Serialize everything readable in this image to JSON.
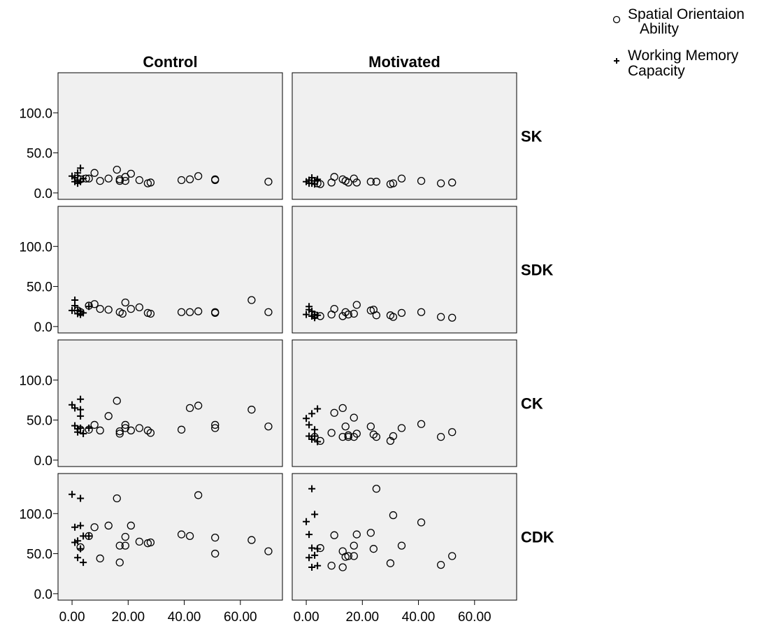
{
  "chart_data": {
    "type": "scatter",
    "columns": [
      "Control",
      "Motivated"
    ],
    "rows": [
      "SK",
      "SDK",
      "CK",
      "CDK"
    ],
    "x_ticks": [
      "0.00",
      "20.00",
      "40.00",
      "60.00"
    ],
    "x_tick_values": [
      0,
      20,
      40,
      60
    ],
    "xlim": [
      -5,
      75
    ],
    "y_ticks": [
      "0.0",
      "50.0",
      "100.0"
    ],
    "y_tick_values": [
      0,
      50,
      100
    ],
    "ylim": [
      -8,
      150
    ],
    "grid": false,
    "legend_position": "top-right",
    "series": [
      {
        "name": "Spatial Orientaion Ability",
        "marker": "circle",
        "color": "#000000"
      },
      {
        "name": "Working Memory Capacity",
        "marker": "plus",
        "color": "#000000"
      }
    ],
    "panels": [
      {
        "column": "Control",
        "row": "SK",
        "circles": [
          [
            2,
            18
          ],
          [
            3,
            17
          ],
          [
            5,
            18
          ],
          [
            6,
            18
          ],
          [
            8,
            25
          ],
          [
            10,
            15
          ],
          [
            13,
            18
          ],
          [
            16,
            29
          ],
          [
            17,
            15
          ],
          [
            17,
            17
          ],
          [
            19,
            15
          ],
          [
            19,
            20
          ],
          [
            21,
            24
          ],
          [
            24,
            16
          ],
          [
            27,
            12
          ],
          [
            28,
            13
          ],
          [
            39,
            16
          ],
          [
            42,
            17
          ],
          [
            45,
            21
          ],
          [
            51,
            17
          ],
          [
            51,
            16
          ],
          [
            70,
            14
          ]
        ],
        "pluses": [
          [
            0,
            21
          ],
          [
            1,
            14
          ],
          [
            1,
            19
          ],
          [
            2,
            16
          ],
          [
            2,
            25
          ],
          [
            2,
            12
          ],
          [
            3,
            31
          ],
          [
            3,
            14
          ],
          [
            4,
            18
          ]
        ]
      },
      {
        "column": "Motivated",
        "row": "SK",
        "circles": [
          [
            3,
            15
          ],
          [
            4,
            12
          ],
          [
            5,
            11
          ],
          [
            9,
            13
          ],
          [
            10,
            20
          ],
          [
            13,
            17
          ],
          [
            14,
            15
          ],
          [
            15,
            13
          ],
          [
            17,
            18
          ],
          [
            18,
            13
          ],
          [
            23,
            14
          ],
          [
            25,
            14
          ],
          [
            30,
            11
          ],
          [
            31,
            12
          ],
          [
            34,
            18
          ],
          [
            41,
            15
          ],
          [
            48,
            12
          ],
          [
            52,
            13
          ]
        ],
        "pluses": [
          [
            0,
            14
          ],
          [
            1,
            16
          ],
          [
            1,
            12
          ],
          [
            2,
            19
          ],
          [
            2,
            12
          ],
          [
            3,
            15
          ],
          [
            3,
            11
          ],
          [
            4,
            17
          ]
        ]
      },
      {
        "column": "Control",
        "row": "SDK",
        "circles": [
          [
            2,
            20
          ],
          [
            3,
            18
          ],
          [
            6,
            26
          ],
          [
            8,
            28
          ],
          [
            10,
            22
          ],
          [
            13,
            21
          ],
          [
            17,
            18
          ],
          [
            18,
            16
          ],
          [
            19,
            30
          ],
          [
            21,
            22
          ],
          [
            24,
            24
          ],
          [
            27,
            17
          ],
          [
            28,
            16
          ],
          [
            39,
            18
          ],
          [
            42,
            18
          ],
          [
            45,
            19
          ],
          [
            51,
            17
          ],
          [
            51,
            18
          ],
          [
            64,
            33
          ],
          [
            70,
            18
          ]
        ],
        "pluses": [
          [
            0,
            20
          ],
          [
            1,
            26
          ],
          [
            1,
            33
          ],
          [
            2,
            16
          ],
          [
            2,
            20
          ],
          [
            3,
            15
          ],
          [
            3,
            19
          ],
          [
            4,
            17
          ],
          [
            6,
            25
          ]
        ]
      },
      {
        "column": "Motivated",
        "row": "SDK",
        "circles": [
          [
            3,
            14
          ],
          [
            5,
            13
          ],
          [
            9,
            15
          ],
          [
            10,
            22
          ],
          [
            13,
            13
          ],
          [
            14,
            18
          ],
          [
            15,
            15
          ],
          [
            17,
            16
          ],
          [
            18,
            27
          ],
          [
            23,
            20
          ],
          [
            24,
            21
          ],
          [
            25,
            14
          ],
          [
            30,
            14
          ],
          [
            31,
            12
          ],
          [
            34,
            17
          ],
          [
            41,
            18
          ],
          [
            48,
            12
          ],
          [
            52,
            11
          ]
        ],
        "pluses": [
          [
            0,
            15
          ],
          [
            1,
            21
          ],
          [
            1,
            25
          ],
          [
            2,
            13
          ],
          [
            2,
            19
          ],
          [
            3,
            15
          ],
          [
            3,
            11
          ],
          [
            4,
            14
          ]
        ]
      },
      {
        "column": "Control",
        "row": "CK",
        "circles": [
          [
            3,
            38
          ],
          [
            6,
            38
          ],
          [
            8,
            44
          ],
          [
            10,
            37
          ],
          [
            13,
            55
          ],
          [
            16,
            74
          ],
          [
            17,
            33
          ],
          [
            17,
            36
          ],
          [
            19,
            44
          ],
          [
            19,
            40
          ],
          [
            21,
            37
          ],
          [
            24,
            40
          ],
          [
            27,
            37
          ],
          [
            28,
            34
          ],
          [
            39,
            38
          ],
          [
            42,
            65
          ],
          [
            45,
            68
          ],
          [
            51,
            44
          ],
          [
            51,
            40
          ],
          [
            64,
            63
          ],
          [
            70,
            42
          ]
        ],
        "pluses": [
          [
            0,
            69
          ],
          [
            1,
            65
          ],
          [
            1,
            43
          ],
          [
            2,
            39
          ],
          [
            2,
            35
          ],
          [
            3,
            76
          ],
          [
            3,
            63
          ],
          [
            3,
            40
          ],
          [
            3,
            55
          ],
          [
            4,
            33
          ],
          [
            6,
            40
          ]
        ]
      },
      {
        "column": "Motivated",
        "row": "CK",
        "circles": [
          [
            3,
            29
          ],
          [
            5,
            24
          ],
          [
            9,
            34
          ],
          [
            10,
            59
          ],
          [
            13,
            65
          ],
          [
            13,
            29
          ],
          [
            14,
            42
          ],
          [
            15,
            31
          ],
          [
            15,
            29
          ],
          [
            17,
            53
          ],
          [
            17,
            29
          ],
          [
            18,
            33
          ],
          [
            23,
            42
          ],
          [
            24,
            32
          ],
          [
            25,
            29
          ],
          [
            30,
            24
          ],
          [
            31,
            30
          ],
          [
            34,
            40
          ],
          [
            41,
            45
          ],
          [
            48,
            29
          ],
          [
            52,
            35
          ]
        ],
        "pluses": [
          [
            0,
            52
          ],
          [
            1,
            44
          ],
          [
            1,
            30
          ],
          [
            2,
            58
          ],
          [
            2,
            26
          ],
          [
            3,
            38
          ],
          [
            3,
            30
          ],
          [
            4,
            64
          ],
          [
            4,
            23
          ]
        ]
      },
      {
        "column": "Control",
        "row": "CDK",
        "circles": [
          [
            3,
            58
          ],
          [
            6,
            72
          ],
          [
            8,
            83
          ],
          [
            10,
            44
          ],
          [
            13,
            85
          ],
          [
            16,
            119
          ],
          [
            17,
            39
          ],
          [
            17,
            60
          ],
          [
            19,
            60
          ],
          [
            19,
            71
          ],
          [
            21,
            85
          ],
          [
            24,
            65
          ],
          [
            27,
            63
          ],
          [
            28,
            64
          ],
          [
            39,
            74
          ],
          [
            42,
            72
          ],
          [
            45,
            123
          ],
          [
            51,
            70
          ],
          [
            51,
            50
          ],
          [
            64,
            67
          ],
          [
            70,
            53
          ]
        ],
        "pluses": [
          [
            0,
            124
          ],
          [
            1,
            83
          ],
          [
            1,
            64
          ],
          [
            2,
            45
          ],
          [
            2,
            66
          ],
          [
            3,
            119
          ],
          [
            3,
            85
          ],
          [
            3,
            56
          ],
          [
            4,
            72
          ],
          [
            4,
            39
          ],
          [
            6,
            72
          ]
        ]
      },
      {
        "column": "Motivated",
        "row": "CDK",
        "circles": [
          [
            5,
            57
          ],
          [
            9,
            35
          ],
          [
            10,
            73
          ],
          [
            13,
            33
          ],
          [
            13,
            53
          ],
          [
            14,
            46
          ],
          [
            15,
            47
          ],
          [
            17,
            60
          ],
          [
            17,
            47
          ],
          [
            18,
            74
          ],
          [
            23,
            76
          ],
          [
            24,
            56
          ],
          [
            25,
            131
          ],
          [
            30,
            38
          ],
          [
            31,
            98
          ],
          [
            34,
            60
          ],
          [
            41,
            89
          ],
          [
            48,
            36
          ],
          [
            52,
            47
          ]
        ],
        "pluses": [
          [
            0,
            90
          ],
          [
            1,
            74
          ],
          [
            1,
            45
          ],
          [
            2,
            131
          ],
          [
            2,
            57
          ],
          [
            2,
            33
          ],
          [
            3,
            99
          ],
          [
            3,
            48
          ],
          [
            4,
            56
          ],
          [
            4,
            35
          ]
        ]
      }
    ]
  }
}
